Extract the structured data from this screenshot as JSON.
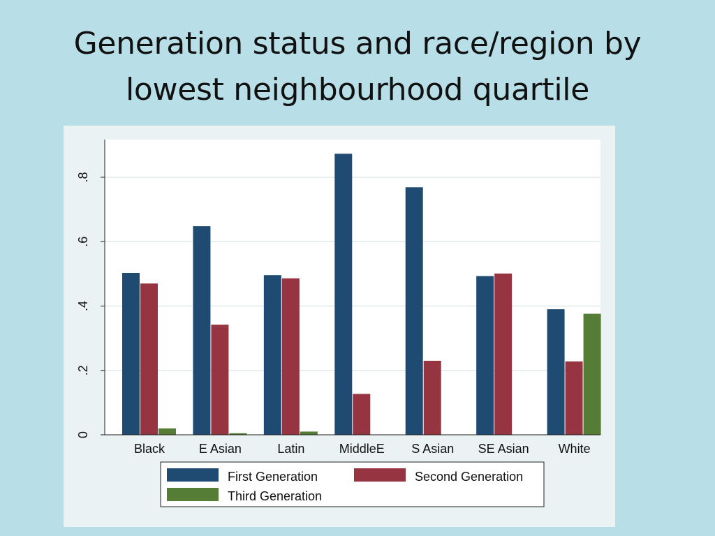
{
  "slide": {
    "title_line1": "Generation status and race/region by",
    "title_line2": "lowest neighbourhood quartile"
  },
  "chart_data": {
    "type": "bar",
    "title": "",
    "xlabel": "",
    "ylabel": "",
    "categories": [
      "Black",
      "E Asian",
      "Latin",
      "MiddleE",
      "S Asian",
      "SE Asian",
      "White"
    ],
    "series": [
      {
        "name": "First Generation",
        "color": "#1f4a72",
        "values": [
          0.503,
          0.648,
          0.496,
          0.873,
          0.769,
          0.493,
          0.39
        ]
      },
      {
        "name": "Second Generation",
        "color": "#963541",
        "values": [
          0.47,
          0.342,
          0.486,
          0.127,
          0.23,
          0.501,
          0.228
        ]
      },
      {
        "name": "Third Generation",
        "color": "#557d35",
        "values": [
          0.02,
          0.005,
          0.01,
          0.0,
          0.0,
          0.0,
          0.376
        ]
      }
    ],
    "yticks": [
      {
        "value": 0,
        "label": "0"
      },
      {
        "value": 0.2,
        "label": ".2"
      },
      {
        "value": 0.4,
        "label": ".4"
      },
      {
        "value": 0.6,
        "label": ".6"
      },
      {
        "value": 0.8,
        "label": ".8"
      }
    ],
    "ylim": [
      0,
      0.92
    ],
    "grid": true,
    "legend_position": "bottom"
  }
}
